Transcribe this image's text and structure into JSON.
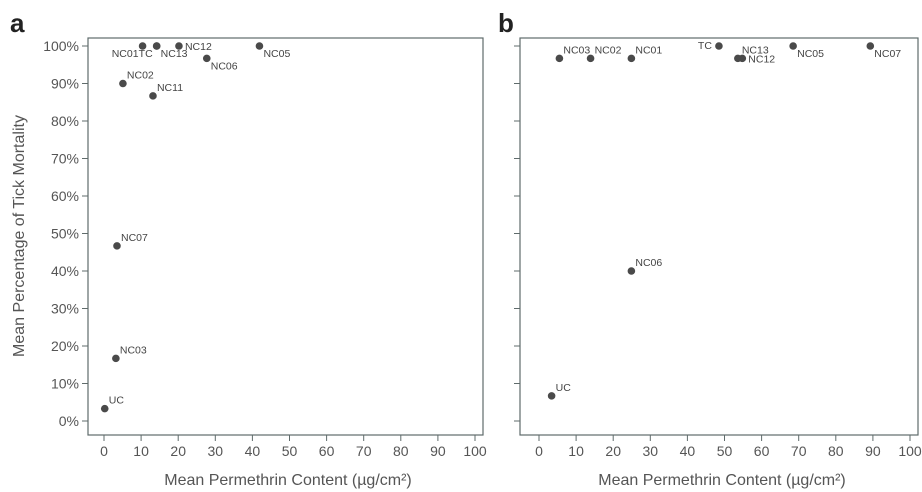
{
  "chart_data": [
    {
      "type": "scatter",
      "panel_label": "a",
      "xlabel": "Mean Permethrin Content (µg/cm²)",
      "ylabel": "Mean Percentage of Tick Mortality",
      "xlim": [
        0,
        100
      ],
      "ylim": [
        0,
        100
      ],
      "xticks": [
        "0",
        "10",
        "20",
        "30",
        "40",
        "50",
        "60",
        "70",
        "80",
        "90",
        "100"
      ],
      "yticks": [
        "0%",
        "10%",
        "20%",
        "30%",
        "40%",
        "50%",
        "60%",
        "70%",
        "80%",
        "90%",
        "100%"
      ],
      "grid": false,
      "points": [
        {
          "label": "NC01",
          "x": 10.4,
          "y": 100,
          "anchor": "bl"
        },
        {
          "label": "TC",
          "x": 14.2,
          "y": 100,
          "anchor": "bl"
        },
        {
          "label": "NC13",
          "x": 14.2,
          "y": 100,
          "anchor": "br"
        },
        {
          "label": "NC12",
          "x": 20.2,
          "y": 100,
          "anchor": "r"
        },
        {
          "label": "NC05",
          "x": 41.9,
          "y": 100,
          "anchor": "br"
        },
        {
          "label": "NC06",
          "x": 27.7,
          "y": 96.7,
          "anchor": "br"
        },
        {
          "label": "NC02",
          "x": 5.1,
          "y": 90,
          "anchor": "tr"
        },
        {
          "label": "NC11",
          "x": 13.2,
          "y": 86.7,
          "anchor": "tr"
        },
        {
          "label": "NC07",
          "x": 3.5,
          "y": 46.7,
          "anchor": "tr"
        },
        {
          "label": "NC03",
          "x": 3.2,
          "y": 16.7,
          "anchor": "tr"
        },
        {
          "label": "UC",
          "x": 0.2,
          "y": 3.3,
          "anchor": "tr"
        }
      ]
    },
    {
      "type": "scatter",
      "panel_label": "b",
      "xlabel": "Mean Permethrin Content (µg/cm²)",
      "ylabel": "",
      "xlim": [
        0,
        100
      ],
      "ylim": [
        0,
        100
      ],
      "xticks": [
        "0",
        "10",
        "20",
        "30",
        "40",
        "50",
        "60",
        "70",
        "80",
        "90",
        "100"
      ],
      "yticks": [],
      "grid": false,
      "points": [
        {
          "label": "NC03",
          "x": 5.5,
          "y": 96.7,
          "anchor": "tr"
        },
        {
          "label": "NC02",
          "x": 13.9,
          "y": 96.7,
          "anchor": "tr"
        },
        {
          "label": "NC01",
          "x": 24.9,
          "y": 96.7,
          "anchor": "tr"
        },
        {
          "label": "TC",
          "x": 48.5,
          "y": 100,
          "anchor": "l"
        },
        {
          "label": "NC13",
          "x": 53.6,
          "y": 96.7,
          "anchor": "tr"
        },
        {
          "label": "NC12",
          "x": 54.8,
          "y": 96.7,
          "anchor": "r"
        },
        {
          "label": "NC05",
          "x": 68.5,
          "y": 100,
          "anchor": "br"
        },
        {
          "label": "NC07",
          "x": 89.3,
          "y": 100,
          "anchor": "br"
        },
        {
          "label": "NC06",
          "x": 24.9,
          "y": 40,
          "anchor": "tr"
        },
        {
          "label": "UC",
          "x": 3.4,
          "y": 6.7,
          "anchor": "tr"
        }
      ]
    }
  ]
}
